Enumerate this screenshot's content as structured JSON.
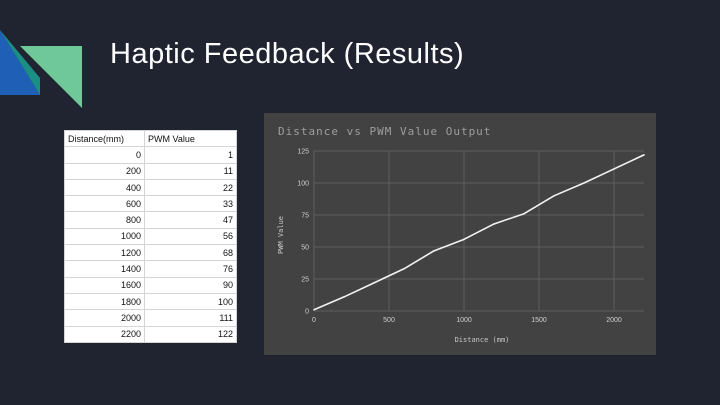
{
  "slide": {
    "title": "Haptic Feedback (Results)",
    "accent_colors": {
      "blue": "#1f5fb5",
      "green": "#6ec89a",
      "teal": "#1b8f86"
    }
  },
  "table": {
    "headers": [
      "Distance(mm)",
      "PWM Value"
    ],
    "rows": [
      [
        "0",
        "1"
      ],
      [
        "200",
        "11"
      ],
      [
        "400",
        "22"
      ],
      [
        "600",
        "33"
      ],
      [
        "800",
        "47"
      ],
      [
        "1000",
        "56"
      ],
      [
        "1200",
        "68"
      ],
      [
        "1400",
        "76"
      ],
      [
        "1600",
        "90"
      ],
      [
        "1800",
        "100"
      ],
      [
        "2000",
        "111"
      ],
      [
        "2200",
        "122"
      ]
    ]
  },
  "chart_data": {
    "type": "line",
    "title": "Distance vs PWM Value Output",
    "xlabel": "Distance (mm)",
    "ylabel": "PWM Value",
    "x": [
      0,
      200,
      400,
      600,
      800,
      1000,
      1200,
      1400,
      1600,
      1800,
      2000,
      2200
    ],
    "series": [
      {
        "values": [
          1,
          11,
          22,
          33,
          47,
          56,
          68,
          76,
          90,
          100,
          111,
          122
        ]
      }
    ],
    "xlim": [
      0,
      2200
    ],
    "ylim": [
      0,
      125
    ],
    "x_ticks": [
      0,
      500,
      1000,
      1500,
      2000
    ],
    "y_ticks": [
      0,
      25,
      50,
      75,
      100,
      125
    ],
    "grid": true,
    "colors": {
      "background": "#424242",
      "grid": "#5e5e5e",
      "line": "#f2f2f2"
    }
  }
}
